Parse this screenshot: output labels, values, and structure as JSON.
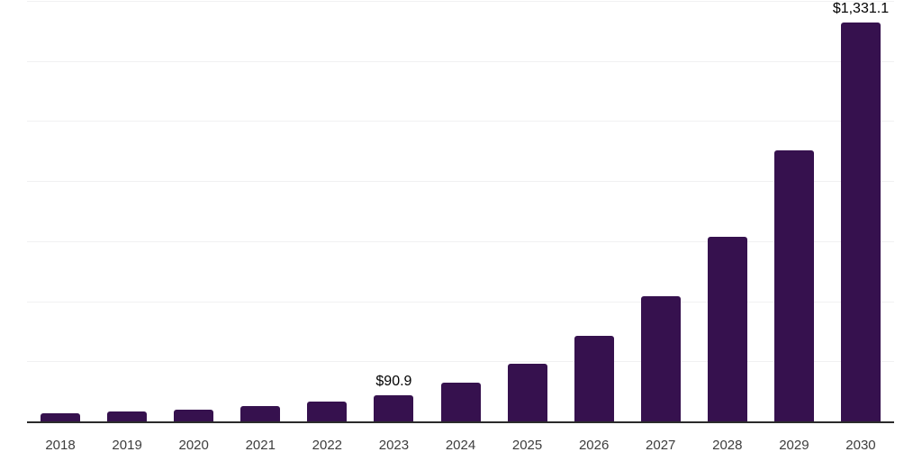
{
  "chart_data": {
    "type": "bar",
    "title": "",
    "xlabel": "",
    "ylabel": "",
    "categories": [
      "2018",
      "2019",
      "2020",
      "2021",
      "2022",
      "2023",
      "2024",
      "2025",
      "2026",
      "2027",
      "2028",
      "2029",
      "2030"
    ],
    "values": [
      30,
      35,
      42,
      53,
      69,
      90.9,
      133,
      196,
      287,
      421,
      618,
      906,
      1331.1
    ],
    "data_labels": [
      "",
      "",
      "",
      "",
      "",
      "$90.9",
      "",
      "",
      "",
      "",
      "",
      "",
      "$1,331.1"
    ],
    "ylim": [
      0,
      1400
    ],
    "grid": {
      "visible": true,
      "orientation": "horizontal",
      "step": 200
    },
    "legend_position": "none",
    "colors": {
      "bar": "#36114e",
      "gridline": "#f1f1f2",
      "axis_line": "#2b2b2b",
      "tick_label": "#3d3d3d",
      "data_label": "#000000",
      "background": "#ffffff"
    }
  }
}
